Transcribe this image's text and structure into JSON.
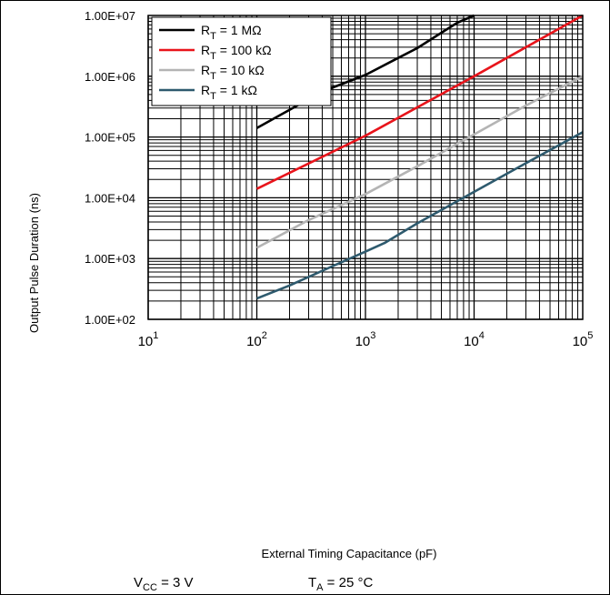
{
  "chart_data": {
    "type": "line",
    "x_scale": "log",
    "y_scale": "log",
    "xlim": [
      10,
      100000
    ],
    "ylim": [
      100,
      10000000
    ],
    "xlabel": "External Timing Capacitance (pF)",
    "ylabel": "Output Pulse Duration (ns)",
    "x_tick_labels": [
      {
        "value": 10,
        "base": "10",
        "exp": "1"
      },
      {
        "value": 100,
        "base": "10",
        "exp": "2"
      },
      {
        "value": 1000,
        "base": "10",
        "exp": "3"
      },
      {
        "value": 10000,
        "base": "10",
        "exp": "4"
      },
      {
        "value": 100000,
        "base": "10",
        "exp": "5"
      }
    ],
    "y_tick_labels": [
      {
        "value": 100,
        "label": "1.00E+02"
      },
      {
        "value": 1000,
        "label": "1.00E+03"
      },
      {
        "value": 10000,
        "label": "1.00E+04"
      },
      {
        "value": 100000,
        "label": "1.00E+05"
      },
      {
        "value": 1000000,
        "label": "1.00E+06"
      },
      {
        "value": 10000000,
        "label": "1.00E+07"
      }
    ],
    "grid": true,
    "legend_position": "top-left",
    "series": [
      {
        "name": "R_T = 1 MΩ",
        "label_main": "R",
        "label_sub": "T",
        "label_rest": " = 1 MΩ",
        "color": "#000000",
        "x": [
          100,
          200,
          400,
          1000,
          2000,
          3000,
          5000,
          7000,
          10000
        ],
        "y": [
          140000,
          280000,
          560000,
          1050000,
          2000000,
          2900000,
          5200000,
          7600000,
          10000000
        ]
      },
      {
        "name": "R_T = 100 kΩ",
        "label_main": "R",
        "label_sub": "T",
        "label_rest": " = 100 kΩ",
        "color": "#e8141b",
        "x": [
          100,
          1000,
          10000,
          100000
        ],
        "y": [
          14000,
          105000,
          1000000,
          10000000
        ]
      },
      {
        "name": "R_T = 10 kΩ",
        "label_main": "R",
        "label_sub": "T",
        "label_rest": " = 10 kΩ",
        "color": "#b4b4b4",
        "x": [
          100,
          300,
          1000,
          3000,
          10000,
          30000,
          100000
        ],
        "y": [
          1500,
          4300,
          11500,
          33000,
          110000,
          330000,
          1000000
        ]
      },
      {
        "name": "R_T = 1 kΩ",
        "label_main": "R",
        "label_sub": "T",
        "label_rest": " = 1 kΩ",
        "color": "#2e5a6e",
        "x": [
          100,
          200,
          500,
          1000,
          1500,
          3000,
          10000,
          30000,
          100000
        ],
        "y": [
          220,
          360,
          750,
          1300,
          1800,
          3800,
          12500,
          37000,
          120000
        ]
      }
    ]
  },
  "conditions": {
    "vcc": {
      "main": "V",
      "sub": "CC",
      "rest": " = 3 V"
    },
    "ta": {
      "main": "T",
      "sub": "A",
      "rest": " = 25 °C"
    }
  }
}
